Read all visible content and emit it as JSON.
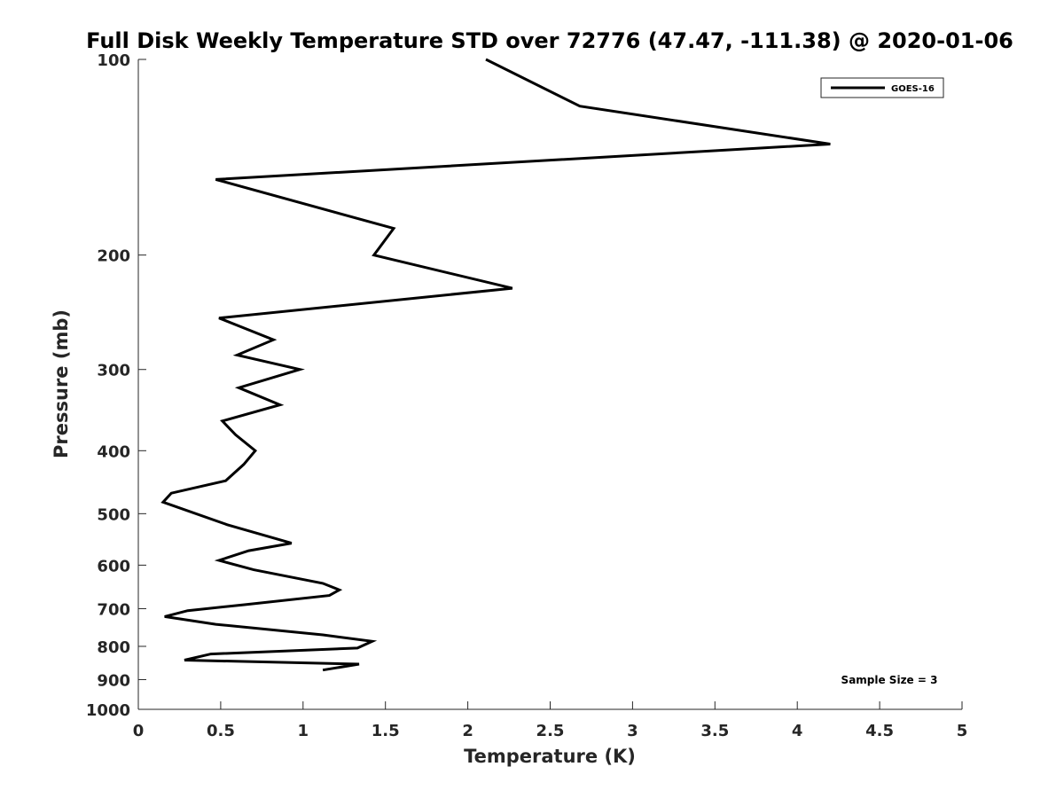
{
  "chart_data": {
    "type": "line",
    "title": "Full Disk Weekly Temperature STD over 72776 (47.47, -111.38) @ 2020-01-06",
    "xlabel": "Temperature (K)",
    "ylabel": "Pressure (mb)",
    "xlim": [
      0,
      5
    ],
    "ylim": [
      100,
      1000
    ],
    "y_scale": "log",
    "y_reversed": true,
    "x_ticks": [
      0,
      0.5,
      1,
      1.5,
      2,
      2.5,
      3,
      3.5,
      4,
      4.5,
      5
    ],
    "x_tick_labels": [
      "0",
      "0.5",
      "1",
      "1.5",
      "2",
      "2.5",
      "3",
      "3.5",
      "4",
      "4.5",
      "5"
    ],
    "y_ticks": [
      100,
      200,
      300,
      400,
      500,
      600,
      700,
      800,
      900,
      1000
    ],
    "y_tick_labels": [
      "100",
      "200",
      "300",
      "400",
      "500",
      "600",
      "700",
      "800",
      "900",
      "1000"
    ],
    "grid": false,
    "legend_position": "top-right",
    "series": [
      {
        "name": "GOES-16",
        "color": "#000000",
        "points": [
          [
            2.11,
            100
          ],
          [
            2.68,
            118
          ],
          [
            4.2,
            135
          ],
          [
            0.47,
            153
          ],
          [
            1.55,
            182
          ],
          [
            1.43,
            200
          ],
          [
            2.27,
            225
          ],
          [
            0.49,
            250
          ],
          [
            0.82,
            270
          ],
          [
            0.6,
            285
          ],
          [
            0.98,
            300
          ],
          [
            0.61,
            320
          ],
          [
            0.86,
            340
          ],
          [
            0.51,
            360
          ],
          [
            0.59,
            378
          ],
          [
            0.71,
            400
          ],
          [
            0.64,
            420
          ],
          [
            0.53,
            445
          ],
          [
            0.2,
            465
          ],
          [
            0.15,
            480
          ],
          [
            0.54,
            520
          ],
          [
            0.93,
            555
          ],
          [
            0.67,
            570
          ],
          [
            0.49,
            590
          ],
          [
            0.7,
            610
          ],
          [
            1.12,
            640
          ],
          [
            1.22,
            655
          ],
          [
            1.16,
            668
          ],
          [
            0.65,
            690
          ],
          [
            0.3,
            705
          ],
          [
            0.16,
            720
          ],
          [
            0.47,
            740
          ],
          [
            1.12,
            768
          ],
          [
            1.42,
            786
          ],
          [
            1.33,
            805
          ],
          [
            0.44,
            822
          ],
          [
            0.28,
            840
          ],
          [
            1.34,
            852
          ],
          [
            1.12,
            870
          ]
        ]
      }
    ],
    "annotation": "Sample Size = 3"
  }
}
